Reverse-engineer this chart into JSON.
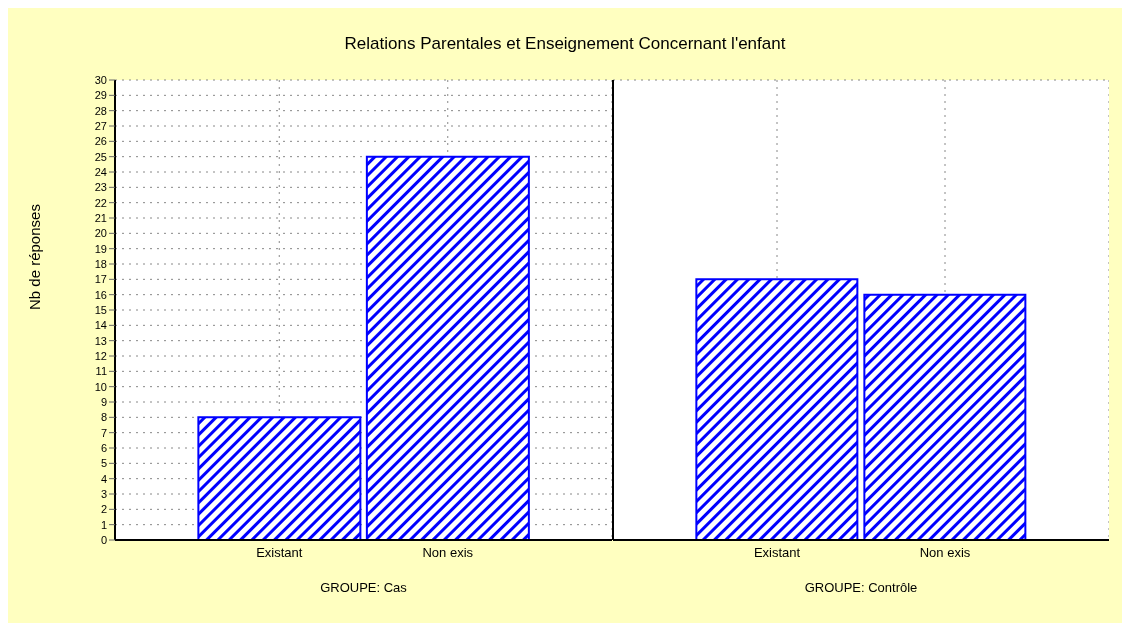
{
  "chart_data": [
    {
      "type": "bar",
      "title": "Relations Parentales et Enseignement Concernant l'enfant",
      "ylabel": "Nb de réponses",
      "xlabel": "GROUPE: Cas",
      "categories": [
        "Existant",
        "Non exis"
      ],
      "values": [
        8,
        25
      ],
      "color": "#0000ff",
      "ylim": [
        0,
        30
      ],
      "yticks": [
        0,
        1,
        2,
        3,
        4,
        5,
        6,
        7,
        8,
        9,
        10,
        11,
        12,
        13,
        14,
        15,
        16,
        17,
        18,
        19,
        20,
        21,
        22,
        23,
        24,
        25,
        26,
        27,
        28,
        29,
        30
      ],
      "grid": true
    },
    {
      "type": "bar",
      "xlabel": "GROUPE: Contrôle",
      "categories": [
        "Existant",
        "Non exis"
      ],
      "values": [
        17,
        16
      ],
      "color": "#0000ff",
      "ylim": [
        0,
        30
      ],
      "yticks": [
        0,
        1,
        2,
        3,
        4,
        5,
        6,
        7,
        8,
        9,
        10,
        11,
        12,
        13,
        14,
        15,
        16,
        17,
        18,
        19,
        20,
        21,
        22,
        23,
        24,
        25,
        26,
        27,
        28,
        29,
        30
      ],
      "grid": true,
      "tick_labels": "x"
    }
  ]
}
